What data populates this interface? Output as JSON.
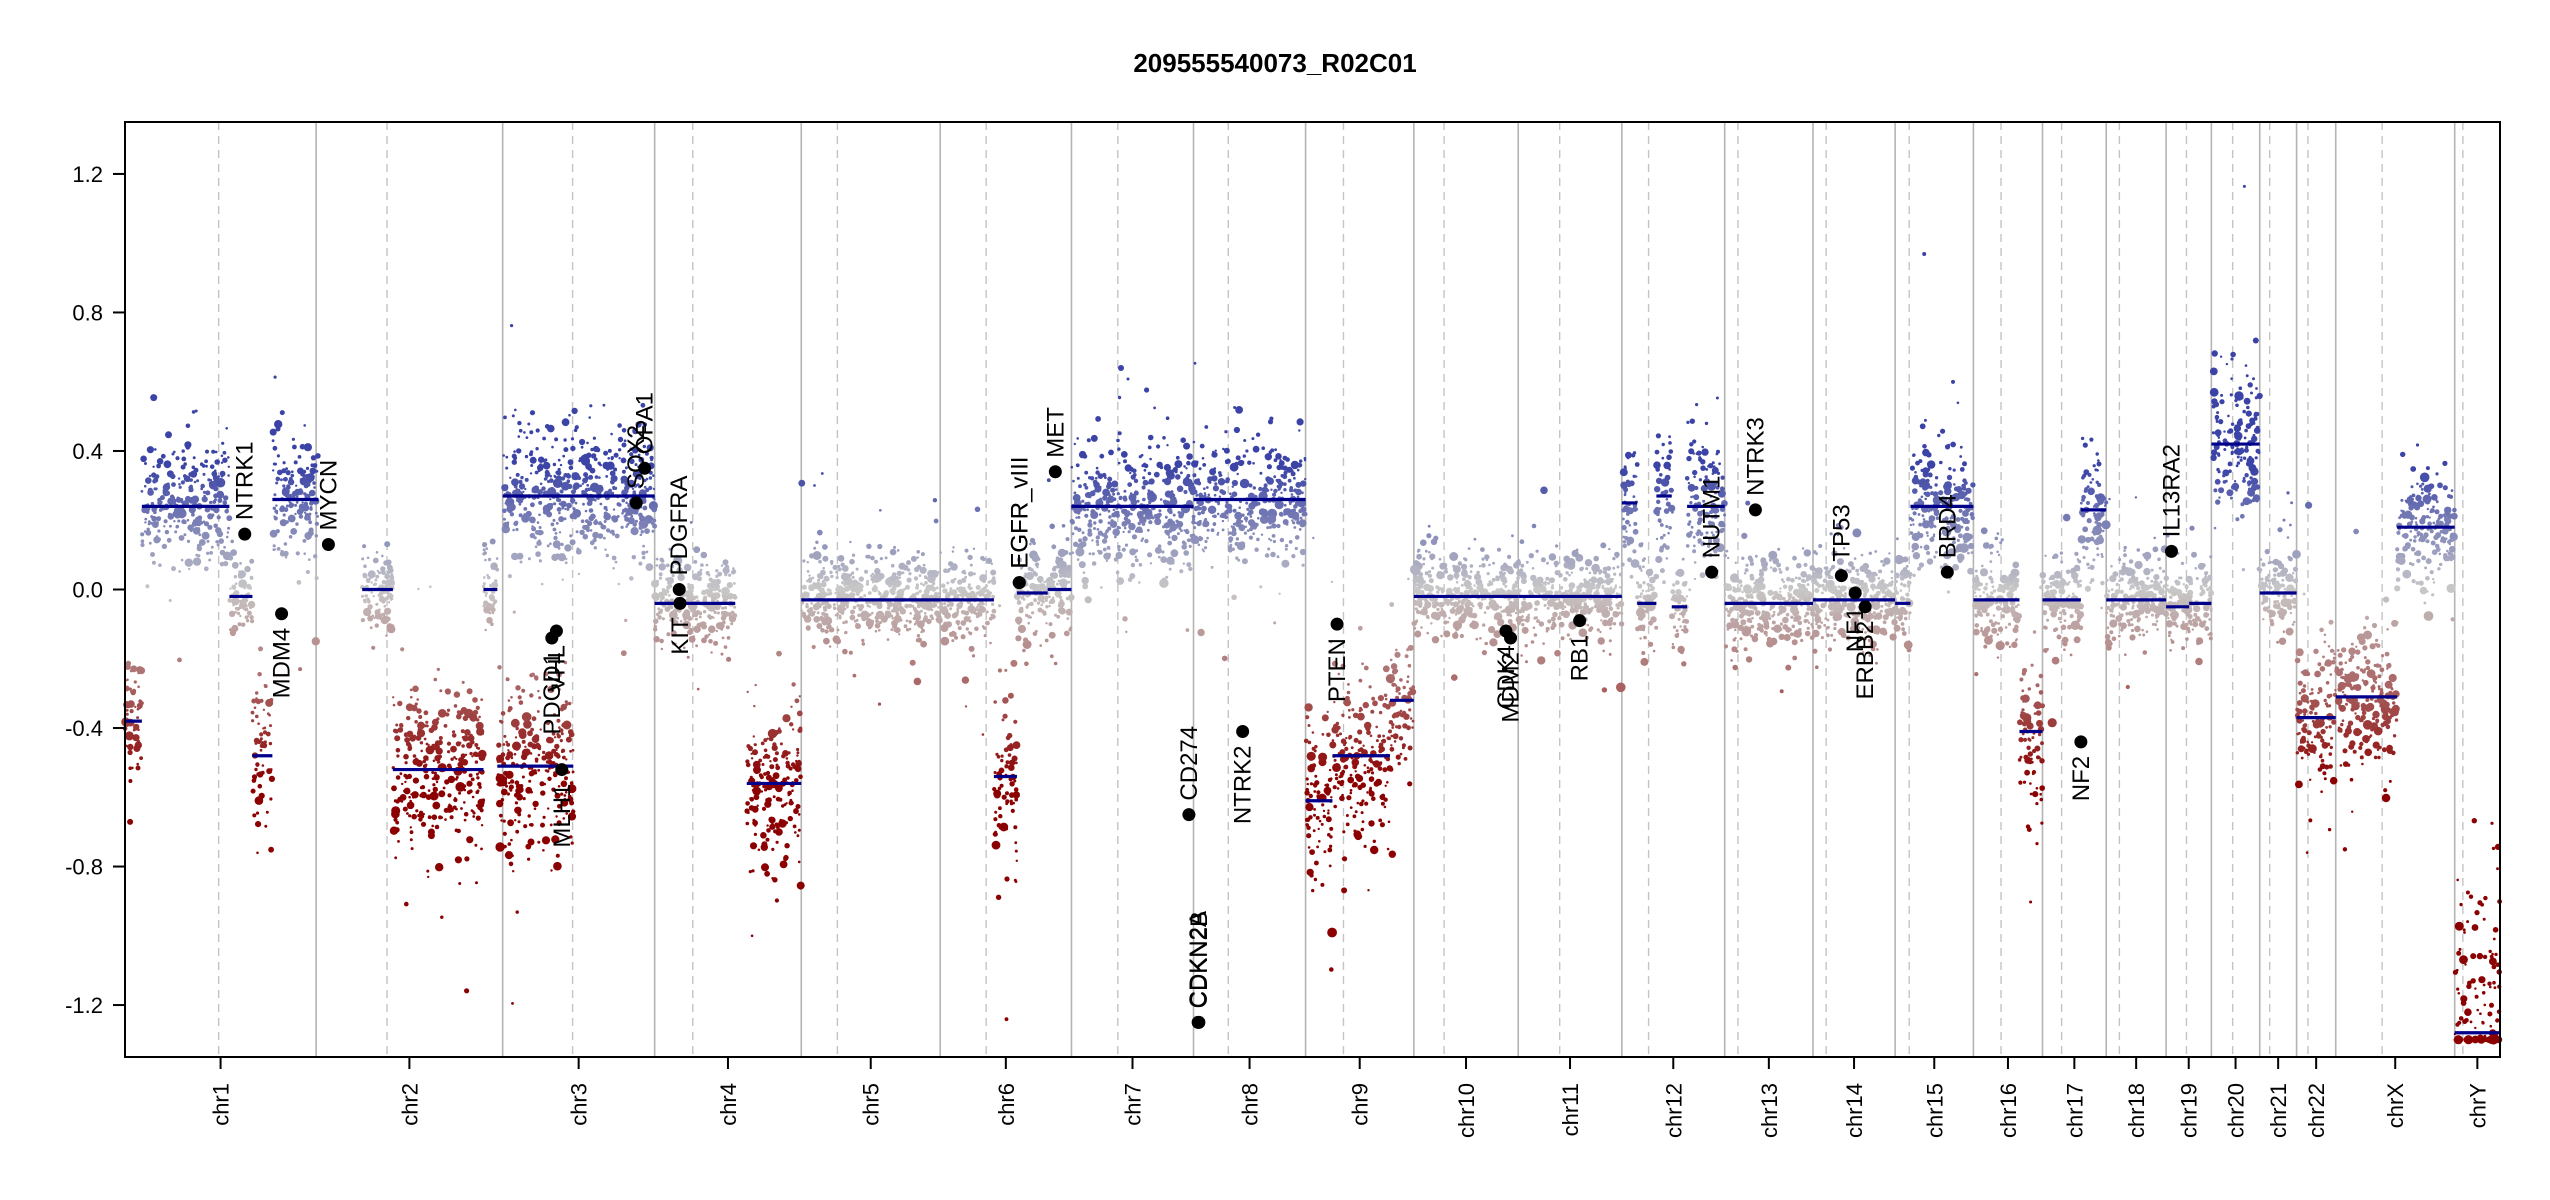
{
  "chart_data": {
    "type": "scatter",
    "title": "209555540073_R02C01",
    "xlabel": "",
    "ylabel": "",
    "ylim": [
      -1.35,
      1.35
    ],
    "y_ticks": [
      -1.2,
      -0.8,
      -0.4,
      0.0,
      0.4,
      0.8,
      1.2
    ],
    "y_tick_labels": [
      "-1.2",
      "-0.8",
      "-0.4",
      "0.0",
      "0.4",
      "0.8",
      "1.2"
    ],
    "colors": {
      "gain": "#3b44a6",
      "neutral": "#c8c8c8",
      "loss": "#8b0000",
      "segment": "#00008b",
      "gene_point": "#000000"
    },
    "chromosomes": [
      {
        "name": "chr1",
        "length": 249,
        "centromere": 0.49
      },
      {
        "name": "chr2",
        "length": 243,
        "centromere": 0.38
      },
      {
        "name": "chr3",
        "length": 198,
        "centromere": 0.46
      },
      {
        "name": "chr4",
        "length": 191,
        "centromere": 0.26
      },
      {
        "name": "chr5",
        "length": 181,
        "centromere": 0.26
      },
      {
        "name": "chr6",
        "length": 171,
        "centromere": 0.35
      },
      {
        "name": "chr7",
        "length": 159,
        "centromere": 0.38
      },
      {
        "name": "chr8",
        "length": 146,
        "centromere": 0.31
      },
      {
        "name": "chr9",
        "length": 141,
        "centromere": 0.35
      },
      {
        "name": "chr10",
        "length": 136,
        "centromere": 0.29
      },
      {
        "name": "chr11",
        "length": 135,
        "centromere": 0.4
      },
      {
        "name": "chr12",
        "length": 134,
        "centromere": 0.26
      },
      {
        "name": "chr13",
        "length": 115,
        "centromere": 0.15
      },
      {
        "name": "chr14",
        "length": 107,
        "centromere": 0.16
      },
      {
        "name": "chr15",
        "length": 102,
        "centromere": 0.18
      },
      {
        "name": "chr16",
        "length": 90,
        "centromere": 0.4
      },
      {
        "name": "chr17",
        "length": 83,
        "centromere": 0.3
      },
      {
        "name": "chr18",
        "length": 78,
        "centromere": 0.22
      },
      {
        "name": "chr19",
        "length": 59,
        "centromere": 0.45
      },
      {
        "name": "chr20",
        "length": 63,
        "centromere": 0.44
      },
      {
        "name": "chr21",
        "length": 48,
        "centromere": 0.27
      },
      {
        "name": "chr22",
        "length": 51,
        "centromere": 0.29
      },
      {
        "name": "chrX",
        "length": 155,
        "centromere": 0.39
      },
      {
        "name": "chrY",
        "length": 59,
        "centromere": 0.18
      }
    ],
    "segments": [
      {
        "chr": "chr1",
        "start": 0.0,
        "end": 0.22,
        "value": -0.38
      },
      {
        "chr": "chr1",
        "start": 0.22,
        "end": 1.36,
        "value": 0.24
      },
      {
        "chr": "chr1",
        "start": 1.36,
        "end": 1.66,
        "value": -0.02
      },
      {
        "chr": "chr1",
        "start": 1.66,
        "end": 1.92,
        "value": -0.48
      },
      {
        "chr": "chr1",
        "start": 1.92,
        "end": 2.52,
        "value": 0.26
      },
      {
        "chr": "chr2",
        "start": 0.6,
        "end": 1.0,
        "value": 0.0
      },
      {
        "chr": "chr2",
        "start": 1.0,
        "end": 2.18,
        "value": -0.52
      },
      {
        "chr": "chr2",
        "start": 2.18,
        "end": 2.36,
        "value": 0.0
      },
      {
        "chr": "chr2",
        "start": 2.36,
        "end": 3.35,
        "value": -0.51
      },
      {
        "chr": "chr3",
        "start": 0.0,
        "end": 1.98,
        "value": 0.27
      },
      {
        "chr": "chr4",
        "start": 0.0,
        "end": 1.05,
        "value": -0.04
      },
      {
        "chr": "chr4",
        "start": 1.2,
        "end": 1.91,
        "value": -0.56
      },
      {
        "chr": "chr5",
        "start": 0.0,
        "end": 1.81,
        "value": -0.03
      },
      {
        "chr": "chr6",
        "start": 0.0,
        "end": 0.7,
        "value": -0.03
      },
      {
        "chr": "chr6",
        "start": 0.7,
        "end": 1.0,
        "value": -0.54
      },
      {
        "chr": "chr6",
        "start": 1.0,
        "end": 1.4,
        "value": -0.01
      },
      {
        "chr": "chr6",
        "start": 1.4,
        "end": 1.71,
        "value": 0.0
      },
      {
        "chr": "chr7",
        "start": 0.0,
        "end": 1.59,
        "value": 0.24
      },
      {
        "chr": "chr8",
        "start": 0.0,
        "end": 1.46,
        "value": 0.26
      },
      {
        "chr": "chr9",
        "start": 0.0,
        "end": 0.35,
        "value": -0.61
      },
      {
        "chr": "chr9",
        "start": 0.35,
        "end": 1.1,
        "value": -0.48
      },
      {
        "chr": "chr9",
        "start": 1.1,
        "end": 1.41,
        "value": -0.32
      },
      {
        "chr": "chr10",
        "start": 0.0,
        "end": 1.36,
        "value": -0.02
      },
      {
        "chr": "chr11",
        "start": 0.0,
        "end": 1.35,
        "value": -0.02
      },
      {
        "chr": "chr12",
        "start": 0.0,
        "end": 0.2,
        "value": 0.25
      },
      {
        "chr": "chr12",
        "start": 0.2,
        "end": 0.45,
        "value": -0.04
      },
      {
        "chr": "chr12",
        "start": 0.45,
        "end": 0.65,
        "value": 0.27
      },
      {
        "chr": "chr12",
        "start": 0.65,
        "end": 0.85,
        "value": -0.05
      },
      {
        "chr": "chr12",
        "start": 0.85,
        "end": 1.34,
        "value": 0.24
      },
      {
        "chr": "chr13",
        "start": 0.0,
        "end": 1.15,
        "value": -0.04
      },
      {
        "chr": "chr14",
        "start": 0.0,
        "end": 1.07,
        "value": -0.03
      },
      {
        "chr": "chr15",
        "start": 0.0,
        "end": 0.2,
        "value": -0.04
      },
      {
        "chr": "chr15",
        "start": 0.2,
        "end": 1.02,
        "value": 0.24
      },
      {
        "chr": "chr16",
        "start": 0.0,
        "end": 0.6,
        "value": -0.03
      },
      {
        "chr": "chr16",
        "start": 0.6,
        "end": 0.9,
        "value": -0.41
      },
      {
        "chr": "chr17",
        "start": 0.0,
        "end": 0.5,
        "value": -0.03
      },
      {
        "chr": "chr17",
        "start": 0.5,
        "end": 0.83,
        "value": 0.23
      },
      {
        "chr": "chr18",
        "start": 0.0,
        "end": 0.78,
        "value": -0.03
      },
      {
        "chr": "chr19",
        "start": 0.0,
        "end": 0.3,
        "value": -0.05
      },
      {
        "chr": "chr19",
        "start": 0.3,
        "end": 0.59,
        "value": -0.04
      },
      {
        "chr": "chr20",
        "start": 0.0,
        "end": 0.63,
        "value": 0.42
      },
      {
        "chr": "chr21",
        "start": 0.0,
        "end": 0.48,
        "value": -0.01
      },
      {
        "chr": "chr22",
        "start": 0.0,
        "end": 0.51,
        "value": -0.37
      },
      {
        "chr": "chrX",
        "start": 0.0,
        "end": 0.8,
        "value": -0.31
      },
      {
        "chr": "chrX",
        "start": 0.8,
        "end": 1.55,
        "value": 0.18
      },
      {
        "chr": "chrY",
        "start": 0.0,
        "end": 0.59,
        "value": -1.28
      }
    ],
    "genes": [
      {
        "name": "NTRK1",
        "x": 1.56,
        "y": 0.16,
        "label_side": "above"
      },
      {
        "name": "MDM4",
        "x": 2.04,
        "y": -0.07,
        "label_side": "below"
      },
      {
        "name": "MYCN",
        "x": 2.65,
        "y": 0.13,
        "label_side": "above"
      },
      {
        "name": "PDGD1",
        "x": 5.56,
        "y": -0.14,
        "label_side": "below"
      },
      {
        "name": "MLH1",
        "x": 5.69,
        "y": -0.52,
        "label_side": "below"
      },
      {
        "name": "VHL",
        "x": 5.62,
        "y": -0.12,
        "label_side": "below"
      },
      {
        "name": "SOX2",
        "x": 6.66,
        "y": 0.25,
        "label_side": "above"
      },
      {
        "name": "OPA1",
        "x": 6.77,
        "y": 0.35,
        "label_side": "above"
      },
      {
        "name": "PDGFRA",
        "x": 7.22,
        "y": 0.0,
        "label_side": "above"
      },
      {
        "name": "KIT",
        "x": 7.23,
        "y": -0.04,
        "label_side": "below"
      },
      {
        "name": "EGFR",
        "x": 11.65,
        "y": 0.02,
        "label_side": "above"
      },
      {
        "name": "EGFR_vIII",
        "x": 11.65,
        "y": 0.02,
        "label_side": "above"
      },
      {
        "name": "MET",
        "x": 12.12,
        "y": 0.34,
        "label_side": "above"
      },
      {
        "name": "CD274",
        "x": 13.86,
        "y": -0.65,
        "label_side": "above"
      },
      {
        "name": "CDKN2A",
        "x": 13.98,
        "y": -1.25,
        "label_side": "above"
      },
      {
        "name": "CDKN2B",
        "x": 13.99,
        "y": -1.25,
        "label_side": "above"
      },
      {
        "name": "NTRK2",
        "x": 14.56,
        "y": -0.41,
        "label_side": "below"
      },
      {
        "name": "PTEN",
        "x": 15.79,
        "y": -0.1,
        "label_side": "below"
      },
      {
        "name": "CDK4",
        "x": 17.99,
        "y": -0.12,
        "label_side": "below"
      },
      {
        "name": "MDM2",
        "x": 18.05,
        "y": -0.14,
        "label_side": "below"
      },
      {
        "name": "RB1",
        "x": 18.95,
        "y": -0.09,
        "label_side": "below"
      },
      {
        "name": "NUTM1",
        "x": 20.67,
        "y": 0.05,
        "label_side": "above"
      },
      {
        "name": "NTRK3",
        "x": 21.24,
        "y": 0.23,
        "label_side": "above"
      },
      {
        "name": "TP53",
        "x": 22.36,
        "y": 0.04,
        "label_side": "above"
      },
      {
        "name": "NF1",
        "x": 22.54,
        "y": -0.01,
        "label_side": "below"
      },
      {
        "name": "ERBB2",
        "x": 22.67,
        "y": -0.05,
        "label_side": "below"
      },
      {
        "name": "BRD4",
        "x": 23.74,
        "y": 0.05,
        "label_side": "above"
      },
      {
        "name": "NF2",
        "x": 25.48,
        "y": -0.44,
        "label_side": "below"
      },
      {
        "name": "IL13RA2",
        "x": 26.66,
        "y": 0.11,
        "label_side": "above"
      }
    ]
  }
}
